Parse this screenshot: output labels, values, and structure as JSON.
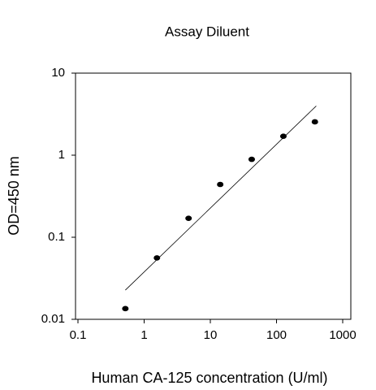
{
  "chart_data": {
    "type": "scatter",
    "title": "Assay Diluent",
    "x_label": "Human CA-125 concentration (U/ml)",
    "y_label": "OD=450 nm",
    "x": [
      0.52,
      1.56,
      4.69,
      14.1,
      42.2,
      127,
      380
    ],
    "values": [
      0.0135,
      0.056,
      0.17,
      0.44,
      0.89,
      1.7,
      2.55
    ],
    "color": "#000000",
    "fit": {
      "x": [
        0.52,
        398
      ],
      "values": [
        0.0227,
        3.98
      ],
      "color": "#000000"
    },
    "x_log": true,
    "y_log": true,
    "xlim": [
      0.1,
      1000
    ],
    "ylim": [
      0.01,
      10
    ],
    "xticks": [
      0.1,
      1,
      10,
      100,
      1000
    ],
    "yticks": [
      0.01,
      0.1,
      1,
      10
    ]
  }
}
